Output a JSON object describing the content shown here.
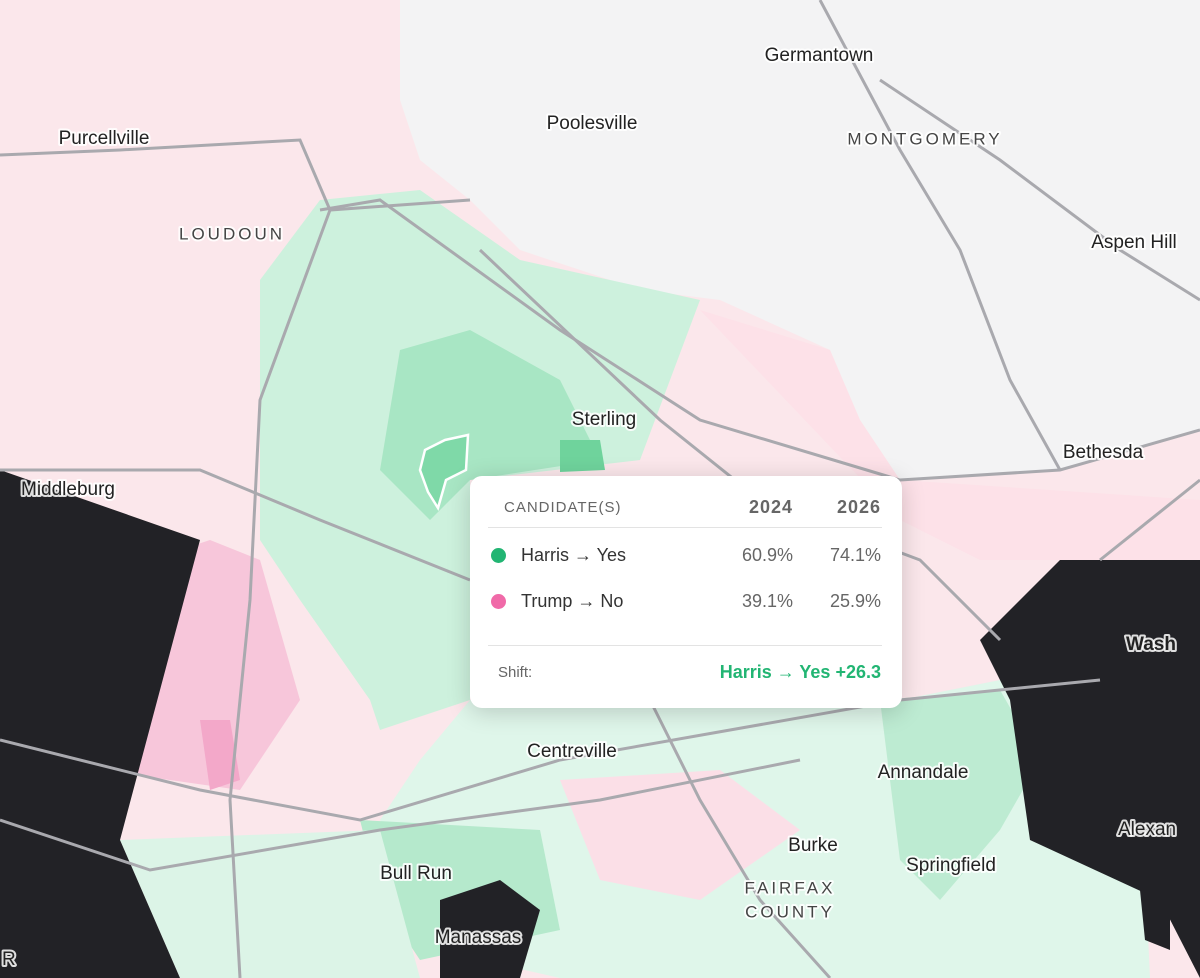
{
  "map": {
    "labels": [
      {
        "text": "Germantown"
      },
      {
        "text": "Poolesville"
      },
      {
        "text": "MONTGOMERY"
      },
      {
        "text": "Purcellville"
      },
      {
        "text": "LOUDOUN"
      },
      {
        "text": "Aspen Hill"
      },
      {
        "text": "Sterling"
      },
      {
        "text": "Bethesda"
      },
      {
        "text": "Middleburg"
      },
      {
        "text": "Wash"
      },
      {
        "text": "Centreville"
      },
      {
        "text": "Annandale"
      },
      {
        "text": "Alexan"
      },
      {
        "text": "Burke"
      },
      {
        "text": "Springfield"
      },
      {
        "text": "Bull Run"
      },
      {
        "text": "FAIRFAX"
      },
      {
        "text": "COUNTY"
      },
      {
        "text": "Manassas"
      },
      {
        "text": "R"
      }
    ]
  },
  "tooltip": {
    "header": [
      "CANDIDATE(S)",
      "2024",
      "2026"
    ],
    "rows": [
      {
        "name": "Harris → Yes",
        "color": "#22b573",
        "values": [
          "60.9%",
          "74.1%"
        ]
      },
      {
        "name": "Trump → No",
        "color": "#f06aa8",
        "values": [
          "39.1%",
          "25.9%"
        ]
      }
    ],
    "shift_label": "Shift:",
    "shift_value": "Harris → Yes +26.3"
  }
}
